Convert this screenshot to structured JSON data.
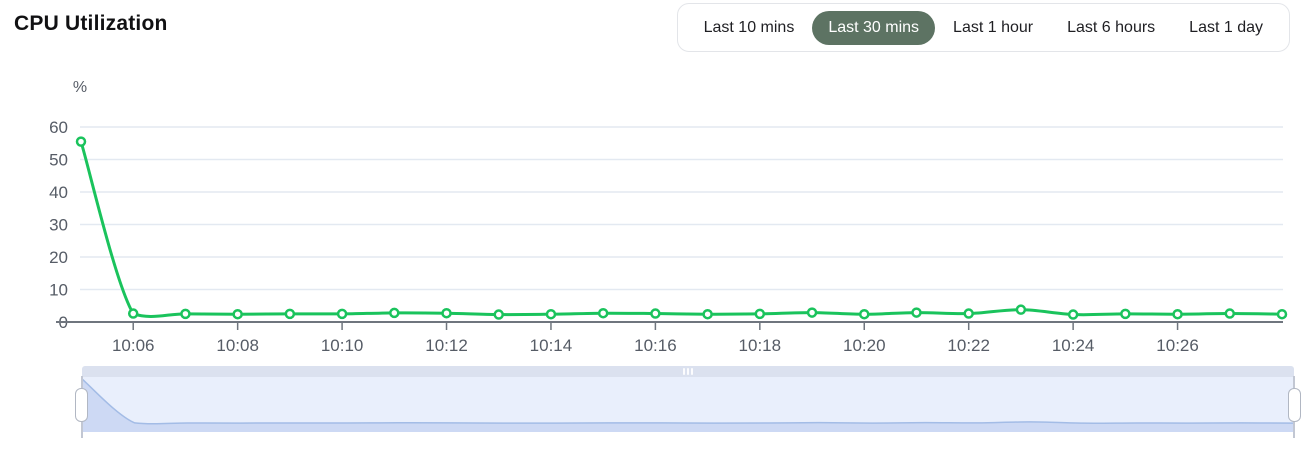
{
  "header": {
    "title": "CPU Utilization",
    "time_range_buttons": [
      {
        "label": "Last 10 mins",
        "selected": false
      },
      {
        "label": "Last 30 mins",
        "selected": true
      },
      {
        "label": "Last 1 hour",
        "selected": false
      },
      {
        "label": "Last 6 hours",
        "selected": false
      },
      {
        "label": "Last 1 day",
        "selected": false
      }
    ]
  },
  "colors": {
    "line_green": "#1ac35c",
    "marker_fill": "#ffffff",
    "selected_pill_bg": "#5d7363",
    "grid_line": "#e3e9f1",
    "axis_line": "#6f757e",
    "tick_label": "#565c66",
    "slider_top_strip": "#dbe1ef",
    "slider_bg": "#e9effc",
    "slider_area_fill": "#cdd9f4",
    "slider_line": "#a3bce6"
  },
  "chart_data": {
    "type": "line",
    "title": "CPU Utilization",
    "unit_label": "%",
    "x": [
      "10:05",
      "10:06",
      "10:07",
      "10:08",
      "10:09",
      "10:10",
      "10:11",
      "10:12",
      "10:13",
      "10:14",
      "10:15",
      "10:16",
      "10:17",
      "10:18",
      "10:19",
      "10:20",
      "10:21",
      "10:22",
      "10:23",
      "10:24",
      "10:25",
      "10:26",
      "10:27",
      "10:28"
    ],
    "values": [
      55.5,
      2.6,
      2.5,
      2.4,
      2.5,
      2.5,
      2.8,
      2.7,
      2.3,
      2.4,
      2.7,
      2.6,
      2.4,
      2.5,
      2.9,
      2.4,
      2.9,
      2.6,
      3.8,
      2.3,
      2.5,
      2.4,
      2.6,
      2.4
    ],
    "x_tick_labels": [
      "10:06",
      "10:08",
      "10:10",
      "10:12",
      "10:14",
      "10:16",
      "10:18",
      "10:20",
      "10:22",
      "10:24",
      "10:26"
    ],
    "y_ticks": [
      0,
      10,
      20,
      30,
      40,
      50,
      60
    ],
    "ylim": [
      0,
      60
    ],
    "grid": true,
    "legend": "none",
    "marker": "hollow-circle"
  }
}
